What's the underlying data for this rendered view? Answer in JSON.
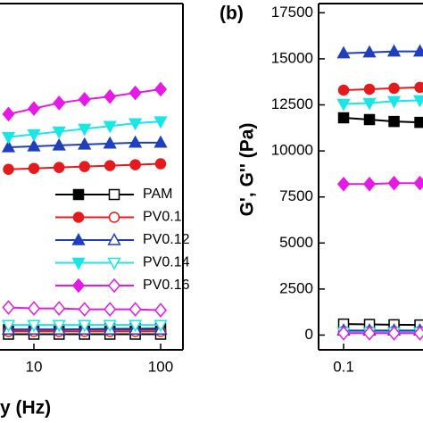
{
  "chart_data": [
    {
      "type": "line",
      "x_label": "y (Hz)",
      "xscale": "log",
      "xlim": [
        5.4,
        150
      ],
      "xticks": [
        10,
        100
      ],
      "ylim": [
        -800,
        18000
      ],
      "x": [
        6.3,
        10,
        15.8,
        25.1,
        39.8,
        63.1,
        100
      ],
      "series": [
        {
          "name": "PAM",
          "color": "#000000",
          "marker": "square",
          "values": [
            300,
            300,
            300,
            320,
            330,
            340,
            350
          ],
          "loss_values": [
            50,
            50,
            50,
            50,
            50,
            50,
            50
          ]
        },
        {
          "name": "PV0.1",
          "color": "#e41a1c",
          "marker": "circle",
          "values": [
            9000,
            9050,
            9100,
            9150,
            9200,
            9250,
            9300
          ],
          "loss_values": [
            200,
            200,
            200,
            200,
            200,
            200,
            200
          ]
        },
        {
          "name": "PV0.12",
          "color": "#1f3fbf",
          "marker": "triangle-up",
          "values": [
            10200,
            10250,
            10300,
            10350,
            10400,
            10450,
            10450
          ],
          "loss_values": [
            300,
            300,
            300,
            300,
            300,
            300,
            300
          ]
        },
        {
          "name": "PV0.14",
          "color": "#19e6e6",
          "marker": "triangle-down",
          "values": [
            10750,
            10900,
            11050,
            11200,
            11350,
            11500,
            11600
          ],
          "loss_values": [
            550,
            550,
            550,
            550,
            550,
            550,
            550
          ]
        },
        {
          "name": "PV0.16",
          "color": "#e619e6",
          "marker": "diamond",
          "values": [
            12000,
            12300,
            12600,
            12800,
            12950,
            13150,
            13350
          ],
          "loss_values": [
            1500,
            1450,
            1450,
            1400,
            1400,
            1400,
            1350
          ]
        }
      ]
    },
    {
      "type": "line",
      "panel_label": "(b)",
      "y_label": "G', G'' (Pa)",
      "xscale": "log",
      "xlim": [
        0.0635,
        0.423
      ],
      "xticks": [
        0.1
      ],
      "ylim": [
        -800,
        18000
      ],
      "yticks": [
        0,
        2500,
        5000,
        7500,
        10000,
        12500,
        15000,
        17500
      ],
      "x": [
        0.1,
        0.16,
        0.25,
        0.4
      ],
      "series": [
        {
          "color": "#000000",
          "marker": "square",
          "values": [
            11800,
            11700,
            11600,
            11550
          ],
          "loss_values": [
            600,
            580,
            560,
            550
          ]
        },
        {
          "color": "#e41a1c",
          "marker": "circle",
          "values": [
            13300,
            13350,
            13400,
            13450
          ],
          "loss_values": [
            200,
            200,
            200,
            200
          ]
        },
        {
          "color": "#1f3fbf",
          "marker": "triangle-up",
          "values": [
            15300,
            15350,
            15400,
            15400
          ],
          "loss_values": [
            250,
            250,
            250,
            250
          ]
        },
        {
          "color": "#19e6e6",
          "marker": "triangle-down",
          "values": [
            12550,
            12600,
            12700,
            12750
          ],
          "loss_values": [
            150,
            150,
            150,
            150
          ]
        },
        {
          "color": "#e619e6",
          "marker": "diamond",
          "values": [
            8200,
            8200,
            8250,
            8250
          ],
          "loss_values": [
            100,
            100,
            100,
            100
          ]
        }
      ]
    }
  ]
}
